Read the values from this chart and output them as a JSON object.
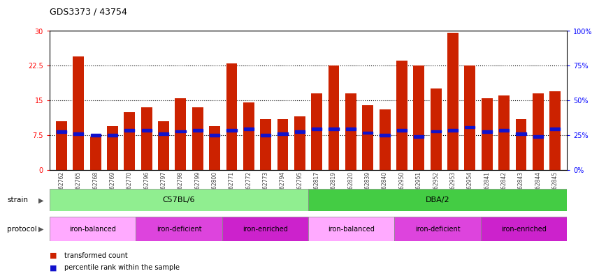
{
  "title": "GDS3373 / 43754",
  "samples": [
    "GSM262762",
    "GSM262765",
    "GSM262768",
    "GSM262769",
    "GSM262770",
    "GSM262796",
    "GSM262797",
    "GSM262798",
    "GSM262799",
    "GSM262800",
    "GSM262771",
    "GSM262772",
    "GSM262773",
    "GSM262794",
    "GSM262795",
    "GSM262817",
    "GSM262819",
    "GSM262820",
    "GSM262839",
    "GSM262840",
    "GSM262950",
    "GSM262951",
    "GSM262952",
    "GSM262953",
    "GSM262954",
    "GSM262841",
    "GSM262842",
    "GSM262843",
    "GSM262844",
    "GSM262845"
  ],
  "red_values": [
    10.5,
    24.5,
    7.2,
    9.5,
    12.5,
    13.5,
    10.5,
    15.5,
    13.5,
    9.5,
    23.0,
    14.5,
    11.0,
    11.0,
    11.5,
    16.5,
    22.5,
    16.5,
    14.0,
    13.0,
    23.5,
    22.5,
    17.5,
    29.5,
    22.5,
    15.5,
    16.0,
    11.0,
    16.5,
    17.0
  ],
  "blue_values": [
    8.2,
    7.8,
    7.5,
    7.5,
    8.5,
    8.5,
    7.8,
    8.3,
    8.5,
    7.5,
    8.5,
    8.8,
    7.5,
    7.8,
    8.2,
    8.8,
    8.8,
    8.8,
    8.0,
    7.5,
    8.5,
    7.2,
    8.3,
    8.5,
    9.2,
    8.2,
    8.5,
    7.8,
    7.2,
    8.8
  ],
  "strain_groups": [
    {
      "label": "C57BL/6",
      "start": 0,
      "end": 15,
      "color": "#90ee90"
    },
    {
      "label": "DBA/2",
      "start": 15,
      "end": 30,
      "color": "#44cc44"
    }
  ],
  "protocol_groups": [
    {
      "label": "iron-balanced",
      "start": 0,
      "end": 5,
      "color": "#ffaaff"
    },
    {
      "label": "iron-deficient",
      "start": 5,
      "end": 10,
      "color": "#dd44dd"
    },
    {
      "label": "iron-enriched",
      "start": 10,
      "end": 15,
      "color": "#cc22cc"
    },
    {
      "label": "iron-balanced",
      "start": 15,
      "end": 20,
      "color": "#ffaaff"
    },
    {
      "label": "iron-deficient",
      "start": 20,
      "end": 25,
      "color": "#dd44dd"
    },
    {
      "label": "iron-enriched",
      "start": 25,
      "end": 30,
      "color": "#cc22cc"
    }
  ],
  "ylim_left": [
    0,
    30
  ],
  "ylim_right": [
    0,
    100
  ],
  "yticks_left": [
    0,
    7.5,
    15,
    22.5,
    30
  ],
  "yticks_right": [
    0,
    25,
    50,
    75,
    100
  ],
  "yticklabels_left": [
    "0",
    "7.5",
    "15",
    "22.5",
    "30"
  ],
  "yticklabels_right": [
    "0%",
    "25%",
    "50%",
    "75%",
    "100%"
  ],
  "gridlines": [
    7.5,
    15,
    22.5
  ],
  "bar_color": "#cc2200",
  "blue_color": "#1111cc",
  "bar_width": 0.65
}
